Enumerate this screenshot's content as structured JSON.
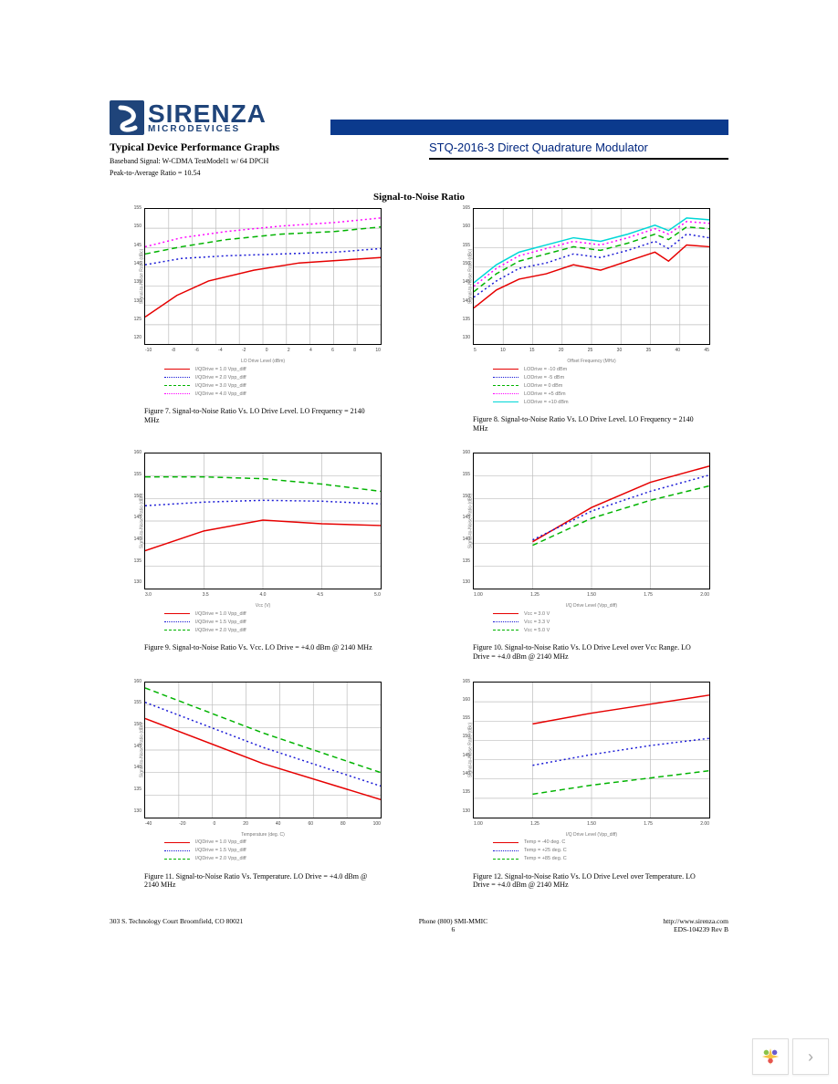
{
  "logo": {
    "top": "SIRENZA",
    "bottom": "MICRODEVICES"
  },
  "header": {
    "left_title": "Typical Device Performance Graphs",
    "left_sub1": "Baseband Signal: W-CDMA TestModel1 w/ 64 DPCH",
    "left_sub2": "Peak-to-Average Ratio = 10.54",
    "right_title": "STQ-2016-3 Direct Quadrature Modulator"
  },
  "section_title": "Signal-to-Noise Ratio",
  "colors": {
    "red": "#e60000",
    "blue": "#1a1ad6",
    "green": "#00b300",
    "magenta": "#ff00ff",
    "cyan": "#00d7d7",
    "grid": "#bdbdbd",
    "border": "#000000"
  },
  "charts": {
    "f7": {
      "caption": "Figure 7. Signal-to-Noise Ratio Vs. LO Drive Level. LO Frequency = 2140 MHz",
      "xlabel": "LO Drive Level (dBm)",
      "ylabel": "Signal-to-Noise Ratio (dBc)",
      "xticks": [
        "-10",
        "-8",
        "-6",
        "-4",
        "-2",
        "0",
        "2",
        "4",
        "6",
        "8",
        "10"
      ],
      "yticks": [
        "155",
        "150",
        "145",
        "140",
        "135",
        "130",
        "125",
        "120"
      ],
      "series": [
        {
          "color": "red",
          "dash": "solid",
          "label": "I/QDrive = 1.0 Vpp_diff",
          "points": [
            [
              0,
              120
            ],
            [
              35,
              96
            ],
            [
              70,
              80
            ],
            [
              120,
              68
            ],
            [
              170,
              60
            ],
            [
              260,
              54
            ]
          ]
        },
        {
          "color": "blue",
          "dash": "dot",
          "label": "I/QDrive = 2.0 Vpp_diff",
          "points": [
            [
              0,
              62
            ],
            [
              40,
              55
            ],
            [
              90,
              52
            ],
            [
              150,
              50
            ],
            [
              210,
              48
            ],
            [
              260,
              44
            ]
          ]
        },
        {
          "color": "green",
          "dash": "dash",
          "label": "I/QDrive = 3.0 Vpp_diff",
          "points": [
            [
              0,
              50
            ],
            [
              40,
              42
            ],
            [
              90,
              34
            ],
            [
              150,
              28
            ],
            [
              210,
              25
            ],
            [
              260,
              20
            ]
          ]
        },
        {
          "color": "magenta",
          "dash": "dot",
          "label": "I/QDrive = 4.0 Vpp_diff",
          "points": [
            [
              0,
              42
            ],
            [
              40,
              32
            ],
            [
              90,
              25
            ],
            [
              150,
              19
            ],
            [
              210,
              15
            ],
            [
              260,
              10
            ]
          ]
        }
      ]
    },
    "f8": {
      "caption": "Figure 8. Signal-to-Noise Ratio Vs. LO Drive Level. LO Frequency = 2140 MHz",
      "xlabel": "Offset Frequency (MHz)",
      "ylabel": "Signal-to-Noise Ratio (dBc)",
      "xticks": [
        "5",
        "10",
        "15",
        "20",
        "25",
        "30",
        "35",
        "40",
        "45"
      ],
      "yticks": [
        "165",
        "160",
        "155",
        "150",
        "145",
        "140",
        "135",
        "130"
      ],
      "series": [
        {
          "color": "red",
          "dash": "solid",
          "label": "LODrive = -10 dBm",
          "points": [
            [
              0,
              110
            ],
            [
              25,
              90
            ],
            [
              50,
              78
            ],
            [
              80,
              72
            ],
            [
              110,
              62
            ],
            [
              140,
              68
            ],
            [
              170,
              58
            ],
            [
              200,
              48
            ],
            [
              215,
              58
            ],
            [
              235,
              40
            ],
            [
              260,
              42
            ]
          ]
        },
        {
          "color": "blue",
          "dash": "dot",
          "label": "LODrive = -5 dBm",
          "points": [
            [
              0,
              98
            ],
            [
              25,
              80
            ],
            [
              50,
              66
            ],
            [
              80,
              60
            ],
            [
              110,
              50
            ],
            [
              140,
              54
            ],
            [
              170,
              46
            ],
            [
              200,
              36
            ],
            [
              215,
              44
            ],
            [
              235,
              28
            ],
            [
              260,
              32
            ]
          ]
        },
        {
          "color": "green",
          "dash": "dash",
          "label": "LODrive =  0 dBm",
          "points": [
            [
              0,
              92
            ],
            [
              25,
              72
            ],
            [
              50,
              58
            ],
            [
              80,
              50
            ],
            [
              110,
              42
            ],
            [
              140,
              46
            ],
            [
              170,
              38
            ],
            [
              200,
              28
            ],
            [
              215,
              34
            ],
            [
              235,
              20
            ],
            [
              260,
              22
            ]
          ]
        },
        {
          "color": "magenta",
          "dash": "dot",
          "label": "LODrive = +5 dBm",
          "points": [
            [
              0,
              86
            ],
            [
              25,
              66
            ],
            [
              50,
              52
            ],
            [
              80,
              44
            ],
            [
              110,
              36
            ],
            [
              140,
              40
            ],
            [
              170,
              32
            ],
            [
              200,
              22
            ],
            [
              215,
              28
            ],
            [
              235,
              14
            ],
            [
              260,
              16
            ]
          ]
        },
        {
          "color": "cyan",
          "dash": "solid",
          "label": "LODrive = +10 dBm",
          "points": [
            [
              0,
              82
            ],
            [
              25,
              62
            ],
            [
              50,
              48
            ],
            [
              80,
              40
            ],
            [
              110,
              32
            ],
            [
              140,
              36
            ],
            [
              170,
              28
            ],
            [
              200,
              18
            ],
            [
              215,
              24
            ],
            [
              235,
              10
            ],
            [
              260,
              12
            ]
          ]
        }
      ]
    },
    "f9": {
      "caption": "Figure 9. Signal-to-Noise Ratio Vs. Vcc. LO Drive = +4.0 dBm @ 2140 MHz",
      "xlabel": "Vcc (V)",
      "ylabel": "Signal-to-Noise Ratio (dBc)",
      "xticks": [
        "3.0",
        "3.5",
        "4.0",
        "4.5",
        "5.0"
      ],
      "yticks": [
        "160",
        "155",
        "150",
        "145",
        "140",
        "135",
        "130"
      ],
      "series": [
        {
          "color": "red",
          "dash": "solid",
          "label": "I/QDrive = 1.0 Vpp_diff",
          "points": [
            [
              0,
              108
            ],
            [
              65,
              86
            ],
            [
              130,
              74
            ],
            [
              195,
              78
            ],
            [
              260,
              80
            ]
          ]
        },
        {
          "color": "blue",
          "dash": "dot",
          "label": "I/QDrive = 1.5 Vpp_diff",
          "points": [
            [
              0,
              58
            ],
            [
              65,
              54
            ],
            [
              130,
              52
            ],
            [
              195,
              53
            ],
            [
              260,
              56
            ]
          ]
        },
        {
          "color": "green",
          "dash": "dash",
          "label": "I/QDrive = 2.0 Vpp_diff",
          "points": [
            [
              0,
              26
            ],
            [
              65,
              26
            ],
            [
              130,
              28
            ],
            [
              195,
              34
            ],
            [
              260,
              42
            ]
          ]
        }
      ]
    },
    "f10": {
      "caption": "Figure 10. Signal-to-Noise Ratio Vs. LO Drive Level over Vcc Range. LO Drive = +4.0 dBm @ 2140 MHz",
      "xlabel": "I/Q Drive Level (Vpp_diff)",
      "ylabel": "Signal-to-Noise Ratio (dBc)",
      "xticks": [
        "1.00",
        "1.25",
        "1.50",
        "1.75",
        "2.00"
      ],
      "yticks": [
        "160",
        "155",
        "150",
        "145",
        "140",
        "135",
        "130"
      ],
      "series": [
        {
          "color": "red",
          "dash": "solid",
          "label": "Vcc = 3.0 V",
          "points": [
            [
              65,
              98
            ],
            [
              130,
              60
            ],
            [
              195,
              32
            ],
            [
              260,
              14
            ]
          ]
        },
        {
          "color": "blue",
          "dash": "dot",
          "label": "Vcc = 3.3 V",
          "points": [
            [
              65,
              96
            ],
            [
              130,
              64
            ],
            [
              195,
              42
            ],
            [
              260,
              24
            ]
          ]
        },
        {
          "color": "green",
          "dash": "dash",
          "label": "Vcc = 5.0 V",
          "points": [
            [
              65,
              102
            ],
            [
              130,
              72
            ],
            [
              195,
              52
            ],
            [
              260,
              36
            ]
          ]
        }
      ]
    },
    "f11": {
      "caption": "Figure 11. Signal-to-Noise Ratio Vs. Temperature. LO Drive = +4.0 dBm @ 2140 MHz",
      "xlabel": "Temperature (deg. C)",
      "ylabel": "Signal-to-Noise Ratio (dBc)",
      "xticks": [
        "-40",
        "-20",
        "0",
        "20",
        "40",
        "60",
        "80",
        "100"
      ],
      "yticks": [
        "160",
        "155",
        "150",
        "145",
        "140",
        "135",
        "130"
      ],
      "series": [
        {
          "color": "red",
          "dash": "solid",
          "label": "I/QDrive = 1.0 Vpp_diff",
          "points": [
            [
              0,
              40
            ],
            [
              130,
              90
            ],
            [
              260,
              130
            ]
          ]
        },
        {
          "color": "blue",
          "dash": "dot",
          "label": "I/QDrive = 1.5 Vpp_diff",
          "points": [
            [
              0,
              22
            ],
            [
              130,
              72
            ],
            [
              260,
              115
            ]
          ]
        },
        {
          "color": "green",
          "dash": "dash",
          "label": "I/QDrive = 2.0 Vpp_diff",
          "points": [
            [
              0,
              6
            ],
            [
              130,
              56
            ],
            [
              260,
              100
            ]
          ]
        }
      ]
    },
    "f12": {
      "caption": "Figure 12. Signal-to-Noise Ratio Vs. LO Drive Level over Temperature. LO Drive = +4.0 dBm @ 2140 MHz",
      "xlabel": "I/Q Drive Level (Vpp_diff)",
      "ylabel": "Signal-to-Noise Ratio (dBc)",
      "xticks": [
        "1.00",
        "1.25",
        "1.50",
        "1.75",
        "2.00"
      ],
      "yticks": [
        "165",
        "160",
        "155",
        "150",
        "145",
        "140",
        "135",
        "130"
      ],
      "series": [
        {
          "color": "red",
          "dash": "solid",
          "label": "Temp = -40 deg. C",
          "points": [
            [
              65,
              46
            ],
            [
              130,
              34
            ],
            [
              195,
              24
            ],
            [
              260,
              14
            ]
          ]
        },
        {
          "color": "blue",
          "dash": "dot",
          "label": "Temp = +25 deg. C",
          "points": [
            [
              65,
              92
            ],
            [
              130,
              80
            ],
            [
              195,
              70
            ],
            [
              260,
              62
            ]
          ]
        },
        {
          "color": "green",
          "dash": "dash",
          "label": "Temp = +85 deg. C",
          "points": [
            [
              65,
              124
            ],
            [
              130,
              114
            ],
            [
              195,
              106
            ],
            [
              260,
              98
            ]
          ]
        }
      ]
    }
  },
  "footer": {
    "left": "303 S. Technology Court Broomfield, CO 80021",
    "center_top": "Phone (800) SMI-MMIC",
    "center_bot": "6",
    "right_top": "http://www.sirenza.com",
    "right_bot": "EDS-104239 Rev B"
  }
}
